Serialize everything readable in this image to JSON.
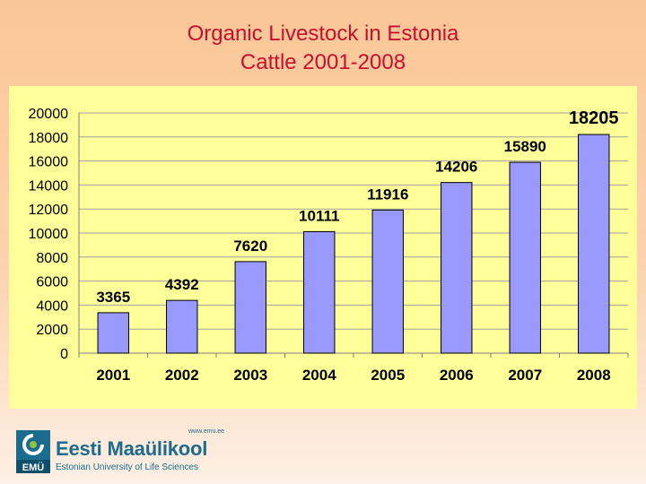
{
  "title_line1": "Organic Livestock in Estonia",
  "title_line2": "Cattle 2001-2008",
  "colors": {
    "title": "#c8102e",
    "panel": "#ffff99",
    "bar_fill": "#9999ff",
    "bar_stroke": "#000000",
    "logo": "#1b6b8e"
  },
  "chart_data": {
    "type": "bar",
    "title": "",
    "xlabel": "",
    "ylabel": "",
    "categories": [
      "2001",
      "2002",
      "2003",
      "2004",
      "2005",
      "2006",
      "2007",
      "2008"
    ],
    "values": [
      3365,
      4392,
      7620,
      10111,
      11916,
      14206,
      15890,
      18205
    ],
    "data_labels": [
      "3365",
      "4392",
      "7620",
      "10111",
      "11916",
      "14206",
      "15890",
      "18205"
    ],
    "ylim": [
      0,
      20000
    ],
    "yticks": [
      0,
      2000,
      4000,
      6000,
      8000,
      10000,
      12000,
      14000,
      16000,
      18000,
      20000
    ],
    "grid": true,
    "legend": "none"
  },
  "logo": {
    "url": "www.emu.ee",
    "name": "Eesti Maaülikool",
    "subtitle": "Estonian University of Life Sciences",
    "mark_text": "EMÜ"
  }
}
